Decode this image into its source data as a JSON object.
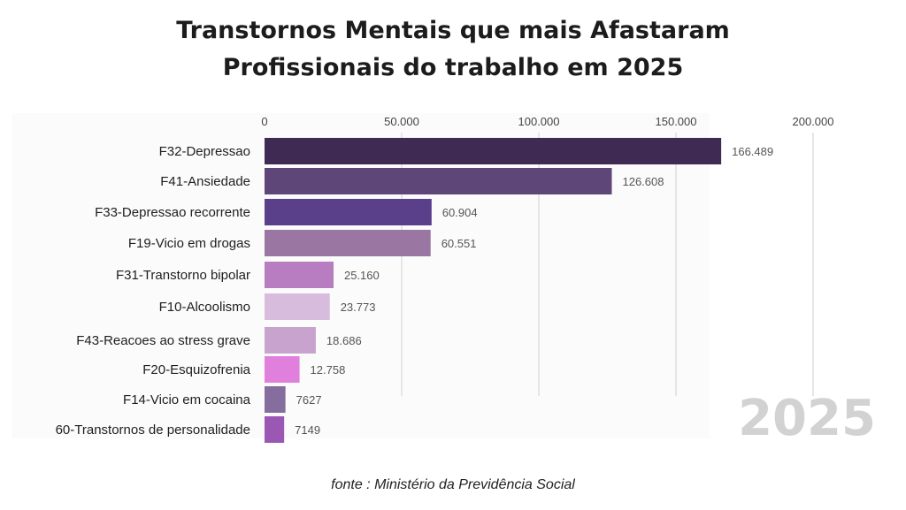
{
  "title": {
    "line1": "Transtornos Mentais que mais Afastaram",
    "line2": "Profissionais do trabalho em 2025"
  },
  "source": "fonte : Ministério da Previdência Social",
  "year_watermark": "2025",
  "chart_data": {
    "type": "bar",
    "orientation": "horizontal",
    "xlim": [
      0,
      200000
    ],
    "ticks": [
      {
        "value": 0,
        "label": "0"
      },
      {
        "value": 50000,
        "label": "50.000"
      },
      {
        "value": 100000,
        "label": "100.000"
      },
      {
        "value": 150000,
        "label": "150.000"
      },
      {
        "value": 200000,
        "label": "200.000"
      }
    ],
    "grid": true,
    "bars": [
      {
        "category": "F32-Depressao",
        "value": 166489,
        "label": "166.489",
        "color": "#3e2a52"
      },
      {
        "category": "F41-Ansiedade",
        "value": 126608,
        "label": "126.608",
        "color": "#5f4678"
      },
      {
        "category": "F33-Depressao recorrente",
        "value": 60904,
        "label": "60.904",
        "color": "#5a3f8a"
      },
      {
        "category": "F19-Vicio em drogas",
        "value": 60551,
        "label": "60.551",
        "color": "#9a76a3"
      },
      {
        "category": "F31-Transtorno bipolar",
        "value": 25160,
        "label": "25.160",
        "color": "#b77dc0"
      },
      {
        "category": "F10-Alcoolismo",
        "value": 23773,
        "label": "23.773",
        "color": "#d8bcdd"
      },
      {
        "category": "F43-Reacoes ao stress grave",
        "value": 18686,
        "label": "18.686",
        "color": "#c8a3ce"
      },
      {
        "category": "F20-Esquizofrenia",
        "value": 12758,
        "label": "12.758",
        "color": "#e07fdc"
      },
      {
        "category": "F14-Vicio em cocaina",
        "value": 7627,
        "label": "7627",
        "color": "#856d9e"
      },
      {
        "category": "60-Transtornos de personalidade",
        "value": 7149,
        "label": "7149",
        "color": "#9a57b4"
      }
    ]
  }
}
